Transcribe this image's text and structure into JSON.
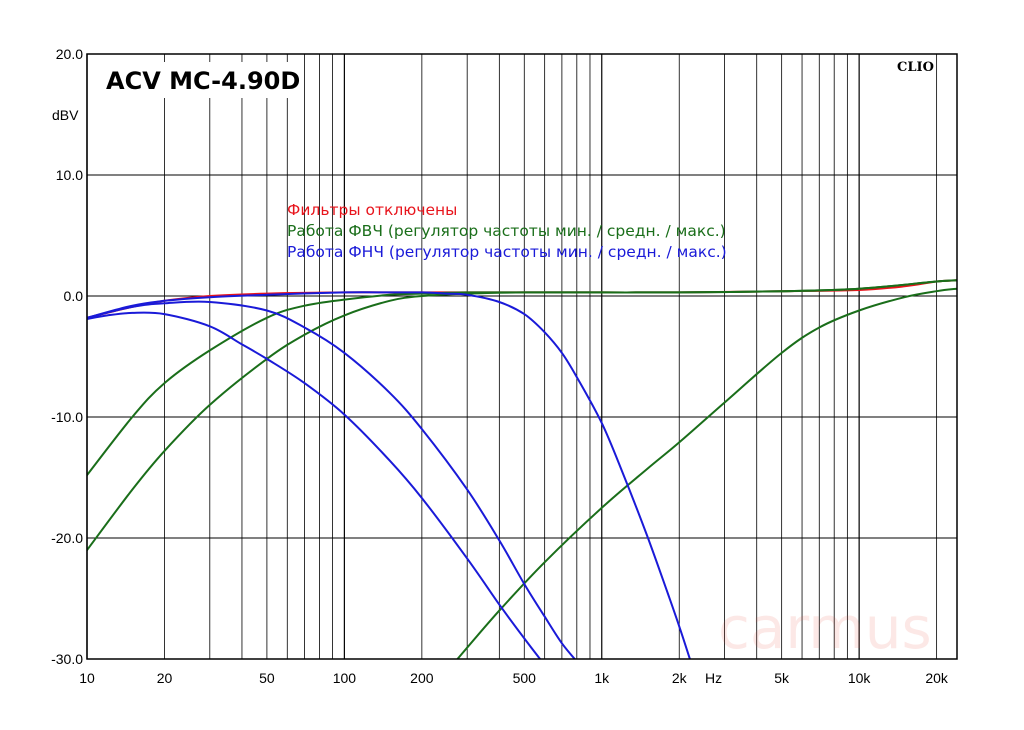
{
  "chart_data": {
    "type": "line",
    "title": "ACV MC-4.90D",
    "brand": "CLIO",
    "watermark": "carmus",
    "xlabel": "Hz",
    "ylabel": "dBV",
    "x_scale": "log",
    "xlim": [
      10,
      24000
    ],
    "ylim": [
      -30,
      20
    ],
    "grid": true,
    "x_ticks": [
      10,
      20,
      50,
      100,
      200,
      500,
      1000,
      2000,
      5000,
      10000,
      20000
    ],
    "x_tick_labels": [
      "10",
      "20",
      "50",
      "100",
      "200",
      "500",
      "1k",
      "2k",
      "5k",
      "10k",
      "20k"
    ],
    "y_ticks": [
      20,
      10,
      0,
      -10,
      -20,
      -30
    ],
    "y_tick_labels": [
      "20.0",
      "10.0",
      "0.0",
      "-10.0",
      "-20.0",
      "-30.0"
    ],
    "legend": [
      {
        "text": "Фильтры отключены",
        "color": "#e8141c"
      },
      {
        "text": "Работа ФВЧ (регулятор частоты мин. / средн. / макс.)",
        "color": "#1a6e1a"
      },
      {
        "text": "Работа ФНЧ (регулятор частоты мин. / средн. / макс.)",
        "color": "#1a1ad8"
      }
    ],
    "series": [
      {
        "group": "Фильтры отключены",
        "color": "#e8141c",
        "x": [
          10,
          15,
          20,
          30,
          50,
          100,
          200,
          500,
          1000,
          2000,
          5000,
          10000,
          15000,
          20000,
          24000
        ],
        "y": [
          -1.8,
          -0.9,
          -0.4,
          0,
          0.2,
          0.3,
          0.3,
          0.3,
          0.3,
          0.3,
          0.4,
          0.5,
          0.8,
          1.2,
          1.3
        ]
      },
      {
        "group": "Работа ФВЧ",
        "color": "#1a6e1a",
        "x": [
          10,
          15,
          20,
          30,
          50,
          70,
          100,
          150,
          200,
          300,
          500,
          1000,
          2000,
          5000,
          10000,
          20000,
          24000
        ],
        "y": [
          -14.8,
          -10,
          -7.2,
          -4.5,
          -1.8,
          -0.8,
          -0.3,
          0.1,
          0.2,
          0.3,
          0.3,
          0.3,
          0.3,
          0.4,
          0.6,
          1.2,
          1.3
        ]
      },
      {
        "group": "Работа ФВЧ",
        "color": "#1a6e1a",
        "x": [
          10,
          15,
          20,
          30,
          50,
          70,
          100,
          150,
          200,
          300,
          500,
          1000,
          2000,
          5000,
          10000,
          20000,
          24000
        ],
        "y": [
          -21,
          -16,
          -12.8,
          -9,
          -5.2,
          -3.2,
          -1.6,
          -0.4,
          0,
          0.2,
          0.3,
          0.3,
          0.3,
          0.4,
          0.6,
          1.2,
          1.3
        ]
      },
      {
        "group": "Работа ФВЧ",
        "color": "#1a6e1a",
        "x": [
          275,
          400,
          600,
          1000,
          1500,
          2000,
          3000,
          5000,
          7000,
          10000,
          15000,
          20000,
          24000
        ],
        "y": [
          -30,
          -26,
          -22,
          -17.5,
          -14.3,
          -12.1,
          -8.8,
          -4.7,
          -2.6,
          -1.2,
          -0.1,
          0.4,
          0.6
        ]
      },
      {
        "group": "Работа ФНЧ",
        "color": "#1a1ad8",
        "x": [
          10,
          15,
          20,
          30,
          50,
          100,
          150,
          200,
          250,
          300,
          400,
          500,
          600,
          700,
          800,
          1000,
          1200,
          1500,
          1800,
          2000,
          2200
        ],
        "y": [
          -1.8,
          -0.8,
          -0.4,
          -0.1,
          0.1,
          0.3,
          0.3,
          0.3,
          0.2,
          0.1,
          -0.5,
          -1.5,
          -3,
          -4.7,
          -6.7,
          -10.5,
          -14.5,
          -19.8,
          -24.5,
          -27.3,
          -30
        ]
      },
      {
        "group": "Работа ФНЧ",
        "color": "#1a1ad8",
        "x": [
          10,
          15,
          20,
          30,
          50,
          70,
          100,
          150,
          200,
          300,
          400,
          500,
          600,
          700,
          800,
          850
        ],
        "y": [
          -1.8,
          -0.9,
          -0.6,
          -0.5,
          -1.2,
          -2.6,
          -4.7,
          -8,
          -11,
          -16,
          -20.2,
          -23.8,
          -26.5,
          -28.7,
          -30.2,
          -30.8
        ]
      },
      {
        "group": "Работа ФНЧ",
        "color": "#1a1ad8",
        "x": [
          10,
          12,
          15,
          20,
          30,
          40,
          50,
          70,
          100,
          150,
          200,
          300,
          400,
          500,
          600
        ],
        "y": [
          -1.9,
          -1.6,
          -1.4,
          -1.5,
          -2.5,
          -4,
          -5.2,
          -7.2,
          -9.8,
          -13.6,
          -16.7,
          -21.7,
          -25.5,
          -28.3,
          -30.5
        ]
      }
    ]
  }
}
